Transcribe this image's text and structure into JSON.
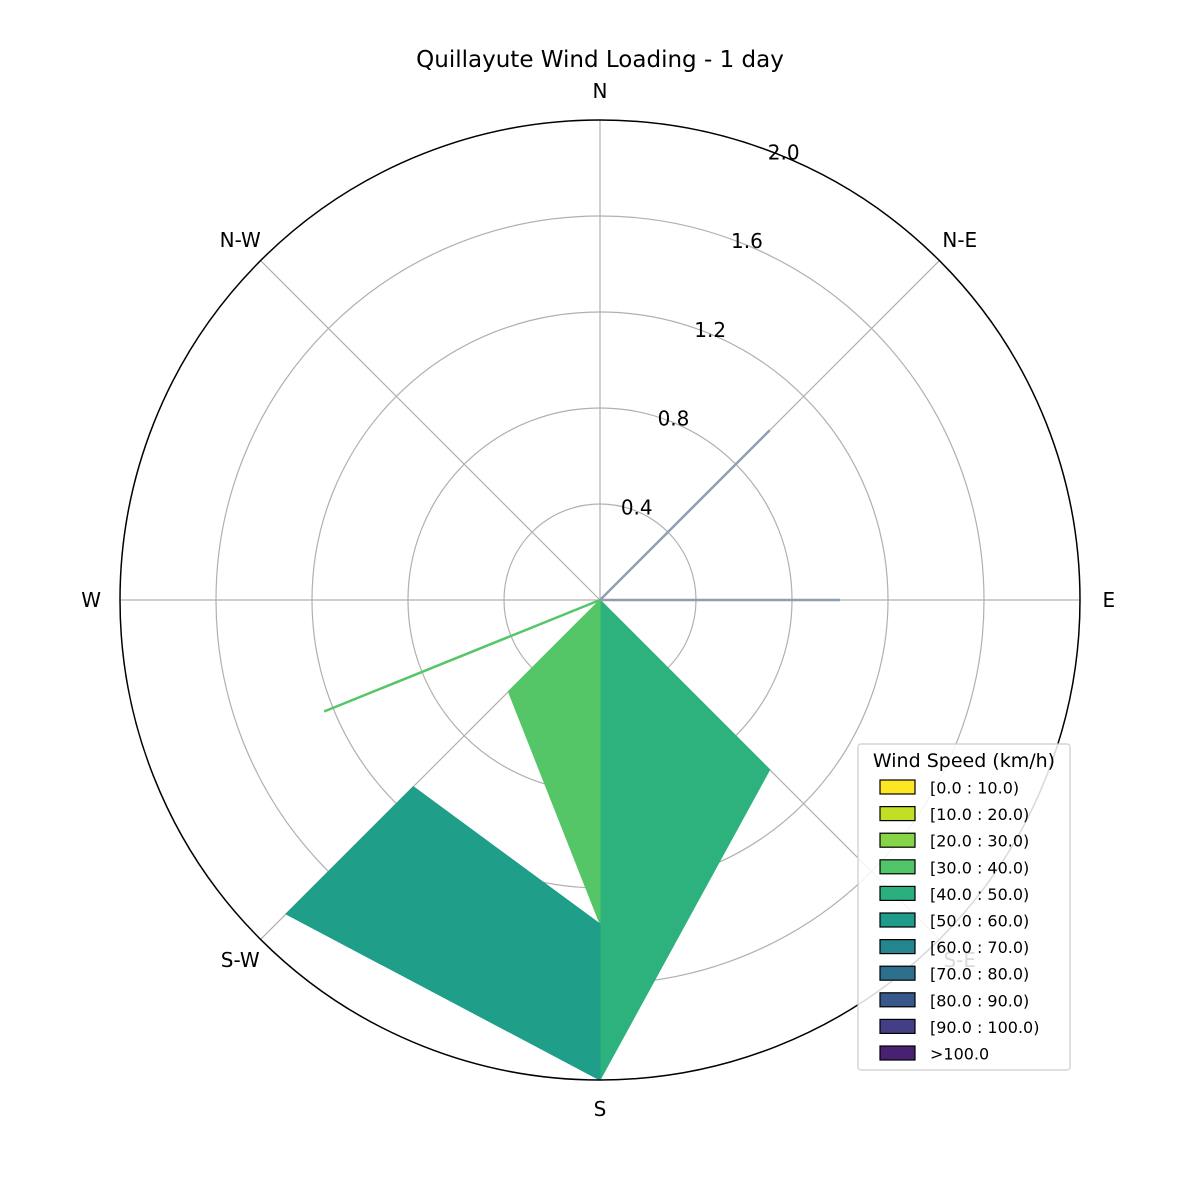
{
  "chart_data": {
    "type": "windrose",
    "title": "Quillayute Wind Loading - 1 day",
    "radial_ticks": [
      0.4,
      0.8,
      1.2,
      1.6,
      2.0
    ],
    "radial_tick_labels": [
      "0.4",
      "0.8",
      "1.2",
      "1.6",
      "2.0"
    ],
    "rmax": 2.0,
    "directions": [
      {
        "label": "N",
        "angle": 0
      },
      {
        "label": "N-E",
        "angle": 45
      },
      {
        "label": "E",
        "angle": 90
      },
      {
        "label": "S-E",
        "angle": 135
      },
      {
        "label": "S",
        "angle": 180
      },
      {
        "label": "S-W",
        "angle": 225
      },
      {
        "label": "W",
        "angle": 270
      },
      {
        "label": "N-W",
        "angle": 315
      }
    ],
    "petals": [
      {
        "from": 135,
        "to": 180,
        "inner": 0,
        "outer": 2.0,
        "color": "#2db27d",
        "bin": "[40.0 : 50.0)",
        "corner": 1.0
      },
      {
        "from": 180,
        "to": 225,
        "inner": 0,
        "outer": 1.35,
        "color": "#55c667",
        "bin": "[30.0 : 40.0)",
        "corner": 0.54
      },
      {
        "from": 180,
        "to": 225,
        "inner": 1.35,
        "outer": 2.0,
        "color": "#1f9e89",
        "bin": "[50.0 : 60.0)",
        "corner": 0.85
      }
    ],
    "lines": [
      {
        "angle": 45,
        "length": 1.0,
        "color": "#8f9fb0",
        "bin": "[70.0 : 80.0)"
      },
      {
        "angle": 90,
        "length": 1.0,
        "color": "#8f9fb0",
        "bin": "[70.0 : 80.0)"
      },
      {
        "angle": 248,
        "length": 1.0,
        "color": "#55c667",
        "bin": "[30.0 : 40.0)"
      }
    ],
    "legend": {
      "title": "Wind Speed (km/h)",
      "position": "lower-right",
      "entries": [
        {
          "label": "[0.0 : 10.0)",
          "color": "#fde725"
        },
        {
          "label": "[10.0 : 20.0)",
          "color": "#c2df23"
        },
        {
          "label": "[20.0 : 30.0)",
          "color": "#86d549"
        },
        {
          "label": "[30.0 : 40.0)",
          "color": "#52c569"
        },
        {
          "label": "[40.0 : 50.0)",
          "color": "#2ab07f"
        },
        {
          "label": "[50.0 : 60.0)",
          "color": "#1e9b8a"
        },
        {
          "label": "[60.0 : 70.0)",
          "color": "#25858e"
        },
        {
          "label": "[70.0 : 80.0)",
          "color": "#2d708e"
        },
        {
          "label": "[80.0 : 90.0)",
          "color": "#38588c"
        },
        {
          "label": "[90.0 : 100.0)",
          "color": "#433e85"
        },
        {
          "label": ">100.0",
          "color": "#482173"
        }
      ]
    },
    "grid": true
  }
}
